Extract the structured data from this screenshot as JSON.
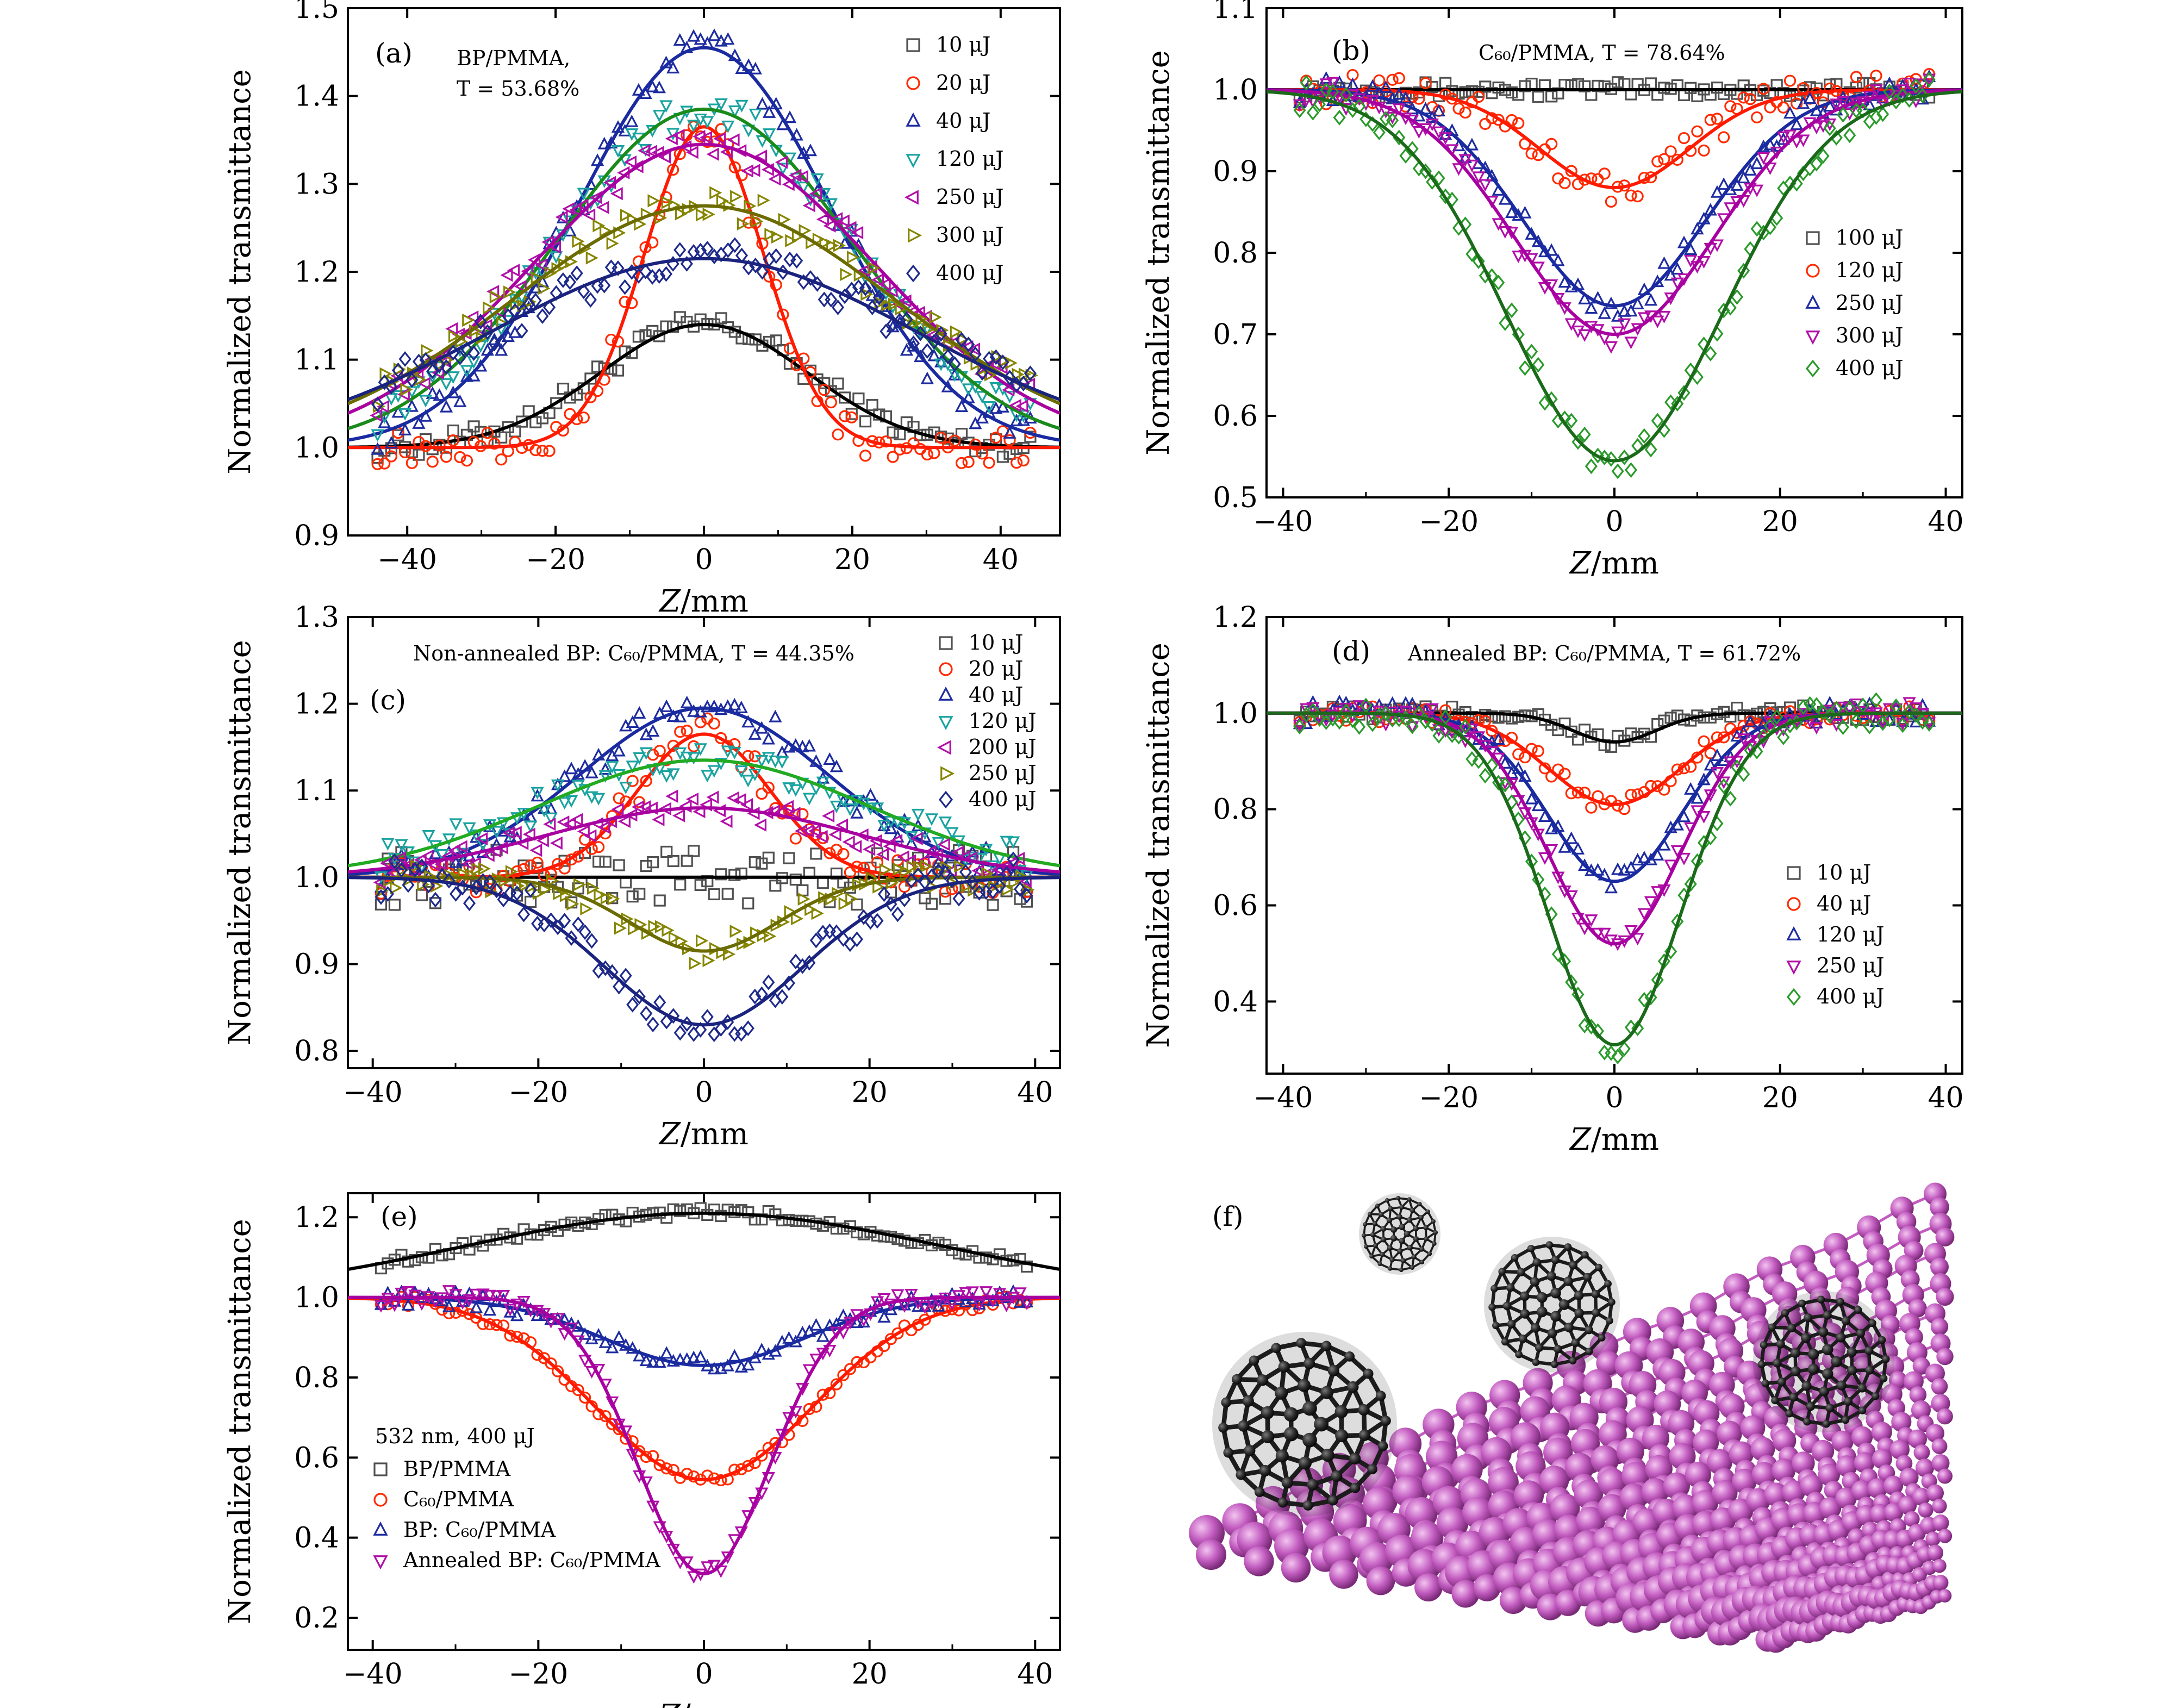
{
  "chart_data": [
    {
      "type": "scatter",
      "panel": "(a)",
      "annotation": [
        "BP/PMMA,",
        "T = 53.68%"
      ],
      "xlabel": "Z/mm",
      "ylabel": "Normalized transmittance",
      "xlim": [
        -48,
        48
      ],
      "ylim": [
        0.9,
        1.5
      ],
      "xticks": [
        -40,
        -20,
        0,
        20,
        40
      ],
      "yticks": [
        0.9,
        1.0,
        1.1,
        1.2,
        1.3,
        1.4,
        1.5
      ],
      "series": [
        {
          "name": "10 μJ",
          "marker": "square",
          "color": "#505050",
          "peak": 0.14,
          "width": 14,
          "noise": 0.008
        },
        {
          "name": "20 μJ",
          "marker": "circle",
          "color": "#ff2a00",
          "peak": 0.365,
          "width": 8,
          "noise": 0.012
        },
        {
          "name": "40 μJ",
          "marker": "triangle-up",
          "color": "#1e2ca0",
          "peak": 0.455,
          "width": 17,
          "noise": 0.012
        },
        {
          "name": "120 μJ",
          "marker": "triangle-down",
          "color": "#1aa3a0",
          "peak": 0.385,
          "width": 20,
          "noise": 0.012
        },
        {
          "name": "250 μJ",
          "marker": "triangle-left",
          "color": "#b10fa8",
          "peak": 0.345,
          "width": 23,
          "noise": 0.012
        },
        {
          "name": "300 μJ",
          "marker": "triangle-right",
          "color": "#858500",
          "peak": 0.275,
          "width": 26,
          "noise": 0.012
        },
        {
          "name": "400 μJ",
          "marker": "diamond",
          "color": "#1e2a8a",
          "peak": 0.215,
          "width": 29,
          "noise": 0.012
        }
      ],
      "fit_colors": [
        "#000000",
        "#ff1a00",
        "#1a2aa0",
        "#1a8a1a",
        "#a800a0",
        "#6b6b00",
        "#1a237e"
      ]
    },
    {
      "type": "scatter",
      "panel": "(b)",
      "annotation": [
        "C₆₀/PMMA, T = 78.64%"
      ],
      "xlabel": "Z/mm",
      "ylabel": "Normalized transmittance",
      "xlim": [
        -42,
        42
      ],
      "ylim": [
        0.5,
        1.1
      ],
      "xticks": [
        -40,
        -20,
        0,
        20,
        40
      ],
      "yticks": [
        0.5,
        0.6,
        0.7,
        0.8,
        0.9,
        1.0,
        1.1
      ],
      "series": [
        {
          "name": "100 μJ",
          "marker": "square",
          "color": "#505050",
          "peak": 0.0,
          "width": 10,
          "noise": 0.006
        },
        {
          "name": "120 μJ",
          "marker": "circle",
          "color": "#ff2a00",
          "peak": -0.12,
          "width": 9,
          "noise": 0.012
        },
        {
          "name": "250 μJ",
          "marker": "triangle-up",
          "color": "#1e2ca0",
          "peak": -0.265,
          "width": 11,
          "noise": 0.01
        },
        {
          "name": "300 μJ",
          "marker": "triangle-down",
          "color": "#b10fa8",
          "peak": -0.3,
          "width": 12,
          "noise": 0.01
        },
        {
          "name": "400 μJ",
          "marker": "diamond",
          "color": "#2a9a2a",
          "peak": -0.455,
          "width": 13,
          "noise": 0.012
        }
      ],
      "fit_colors": [
        "#000000",
        "#ff1a00",
        "#1a2aa0",
        "#a800a0",
        "#1a6a1a"
      ]
    },
    {
      "type": "scatter",
      "panel": "(c)",
      "annotation": [
        "Non-annealed BP: C₆₀/PMMA, T = 44.35%"
      ],
      "xlabel": "Z/mm",
      "ylabel": "Normalized transmittance",
      "xlim": [
        -43,
        43
      ],
      "ylim": [
        0.78,
        1.3
      ],
      "xticks": [
        -40,
        -20,
        0,
        20,
        40
      ],
      "yticks": [
        0.8,
        0.9,
        1.0,
        1.1,
        1.2,
        1.3
      ],
      "series": [
        {
          "name": "10 μJ",
          "marker": "square",
          "color": "#505050",
          "peak": 0.0,
          "width": 10,
          "noise": 0.02
        },
        {
          "name": "20 μJ",
          "marker": "circle",
          "color": "#ff2a00",
          "peak": 0.165,
          "width": 8,
          "noise": 0.012
        },
        {
          "name": "40 μJ",
          "marker": "triangle-up",
          "color": "#1e2ca0",
          "peak": 0.195,
          "width": 15,
          "noise": 0.012
        },
        {
          "name": "120 μJ",
          "marker": "triangle-down",
          "color": "#1aa3a0",
          "peak": 0.135,
          "width": 20,
          "noise": 0.012
        },
        {
          "name": "200 μJ",
          "marker": "triangle-left",
          "color": "#b10fa8",
          "peak": 0.08,
          "width": 19,
          "noise": 0.01
        },
        {
          "name": "250 μJ",
          "marker": "triangle-right",
          "color": "#858500",
          "peak": -0.085,
          "width": 9,
          "noise": 0.01
        },
        {
          "name": "400 μJ",
          "marker": "diamond",
          "color": "#1e2a8a",
          "peak": -0.17,
          "width": 12,
          "noise": 0.014
        }
      ],
      "fit_colors": [
        "#000000",
        "#ff1a00",
        "#1a2aa0",
        "#22aa22",
        "#a800a0",
        "#6b6b00",
        "#1a237e"
      ]
    },
    {
      "type": "scatter",
      "panel": "(d)",
      "annotation": [
        "Annealed BP: C₆₀/PMMA, T = 61.72%"
      ],
      "xlabel": "Z/mm",
      "ylabel": "Normalized transmittance",
      "xlim": [
        -42,
        42
      ],
      "ylim": [
        0.25,
        1.2
      ],
      "xticks": [
        -40,
        -20,
        0,
        20,
        40
      ],
      "yticks": [
        0.4,
        0.6,
        0.8,
        1.0,
        1.2
      ],
      "series": [
        {
          "name": "10 μJ",
          "marker": "square",
          "color": "#505050",
          "peak": -0.06,
          "width": 5,
          "noise": 0.01
        },
        {
          "name": "40 μJ",
          "marker": "circle",
          "color": "#ff2a00",
          "peak": -0.19,
          "width": 8,
          "noise": 0.012
        },
        {
          "name": "120 μJ",
          "marker": "triangle-up",
          "color": "#1e2ca0",
          "peak": -0.35,
          "width": 8,
          "noise": 0.015
        },
        {
          "name": "250 μJ",
          "marker": "triangle-down",
          "color": "#b10fa8",
          "peak": -0.48,
          "width": 8,
          "noise": 0.015
        },
        {
          "name": "400 μJ",
          "marker": "diamond",
          "color": "#2a9a2a",
          "peak": -0.69,
          "width": 8,
          "noise": 0.018
        }
      ],
      "fit_colors": [
        "#000000",
        "#ff1a00",
        "#1a2aa0",
        "#a800a0",
        "#1a6a1a"
      ]
    },
    {
      "type": "scatter",
      "panel": "(e)",
      "annotation": [
        "532 nm, 400 μJ"
      ],
      "xlabel": "Z/mm",
      "ylabel": "Normalized transmittance",
      "xlim": [
        -43,
        43
      ],
      "ylim": [
        0.12,
        1.26
      ],
      "xticks": [
        -40,
        -20,
        0,
        20,
        40
      ],
      "yticks": [
        0.2,
        0.4,
        0.6,
        0.8,
        1.0,
        1.2
      ],
      "series": [
        {
          "name": "BP/PMMA",
          "marker": "square",
          "color": "#505050",
          "peak": 0.21,
          "width": 29,
          "noise": 0.008
        },
        {
          "name": "C₆₀/PMMA",
          "marker": "circle",
          "color": "#ff2a00",
          "peak": -0.455,
          "width": 13,
          "noise": 0.008
        },
        {
          "name": "BP: C₆₀/PMMA",
          "marker": "triangle-up",
          "color": "#1e2ca0",
          "peak": -0.17,
          "width": 12,
          "noise": 0.012
        },
        {
          "name": "Annealed BP: C₆₀/PMMA",
          "marker": "triangle-down",
          "color": "#b10fa8",
          "peak": -0.69,
          "width": 8,
          "noise": 0.012
        }
      ],
      "fit_colors": [
        "#000000",
        "#ff1a00",
        "#1a2aa0",
        "#a800a0"
      ]
    }
  ],
  "panel_f": {
    "label": "(f)",
    "description_colors": {
      "phosphorene": "#c25cc0",
      "fullerene": "#2b2b2b"
    }
  }
}
